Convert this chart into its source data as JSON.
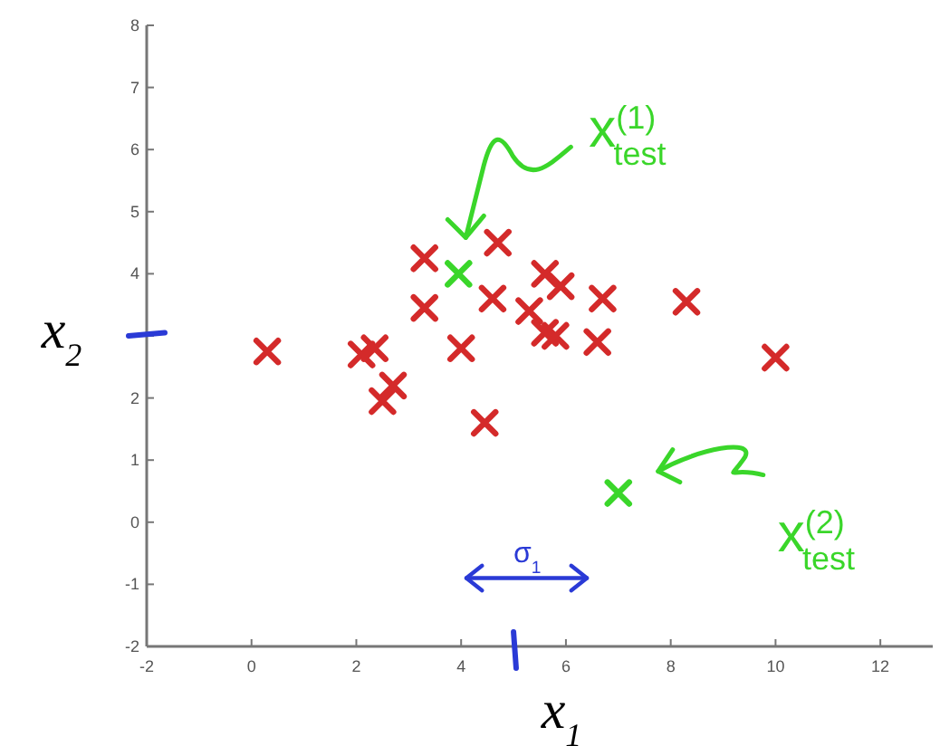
{
  "chart_data": {
    "type": "scatter",
    "xlabel": "x$_{1}$",
    "ylabel": "x$_{2}$",
    "xlim": [
      -2,
      13
    ],
    "ylim": [
      -2,
      8
    ],
    "xticks": [
      -2,
      0,
      2,
      4,
      6,
      8,
      10,
      12
    ],
    "yticks": [
      -2,
      -1,
      0,
      1,
      2,
      {
        "value": 3,
        "label": null
      },
      4,
      5,
      6,
      7,
      8
    ],
    "marker": "cross",
    "grid": false,
    "series": [
      {
        "color": "#d42a2a",
        "x": [
          0.3,
          2.1,
          2.35,
          2.7,
          2.5,
          3.3,
          3.3,
          4.0,
          4.45,
          4.7,
          4.6,
          5.3,
          5.6,
          5.9,
          5.6,
          5.8,
          6.7,
          6.6,
          8.3,
          10.0
        ],
        "values": [
          2.75,
          2.7,
          2.8,
          2.2,
          1.95,
          4.25,
          3.45,
          2.8,
          1.6,
          4.5,
          3.6,
          3.4,
          4.0,
          3.8,
          3.05,
          3.0,
          3.6,
          2.9,
          3.55,
          2.65
        ]
      },
      {
        "color": "#3ad62a",
        "x": [
          3.95,
          7.0
        ],
        "values": [
          4.0,
          0.47
        ]
      }
    ],
    "annotations": [
      "x$^{(1)}$$_{test}$",
      "x$^{(2)}$$_{test}$",
      "σ$_{1}$"
    ]
  }
}
